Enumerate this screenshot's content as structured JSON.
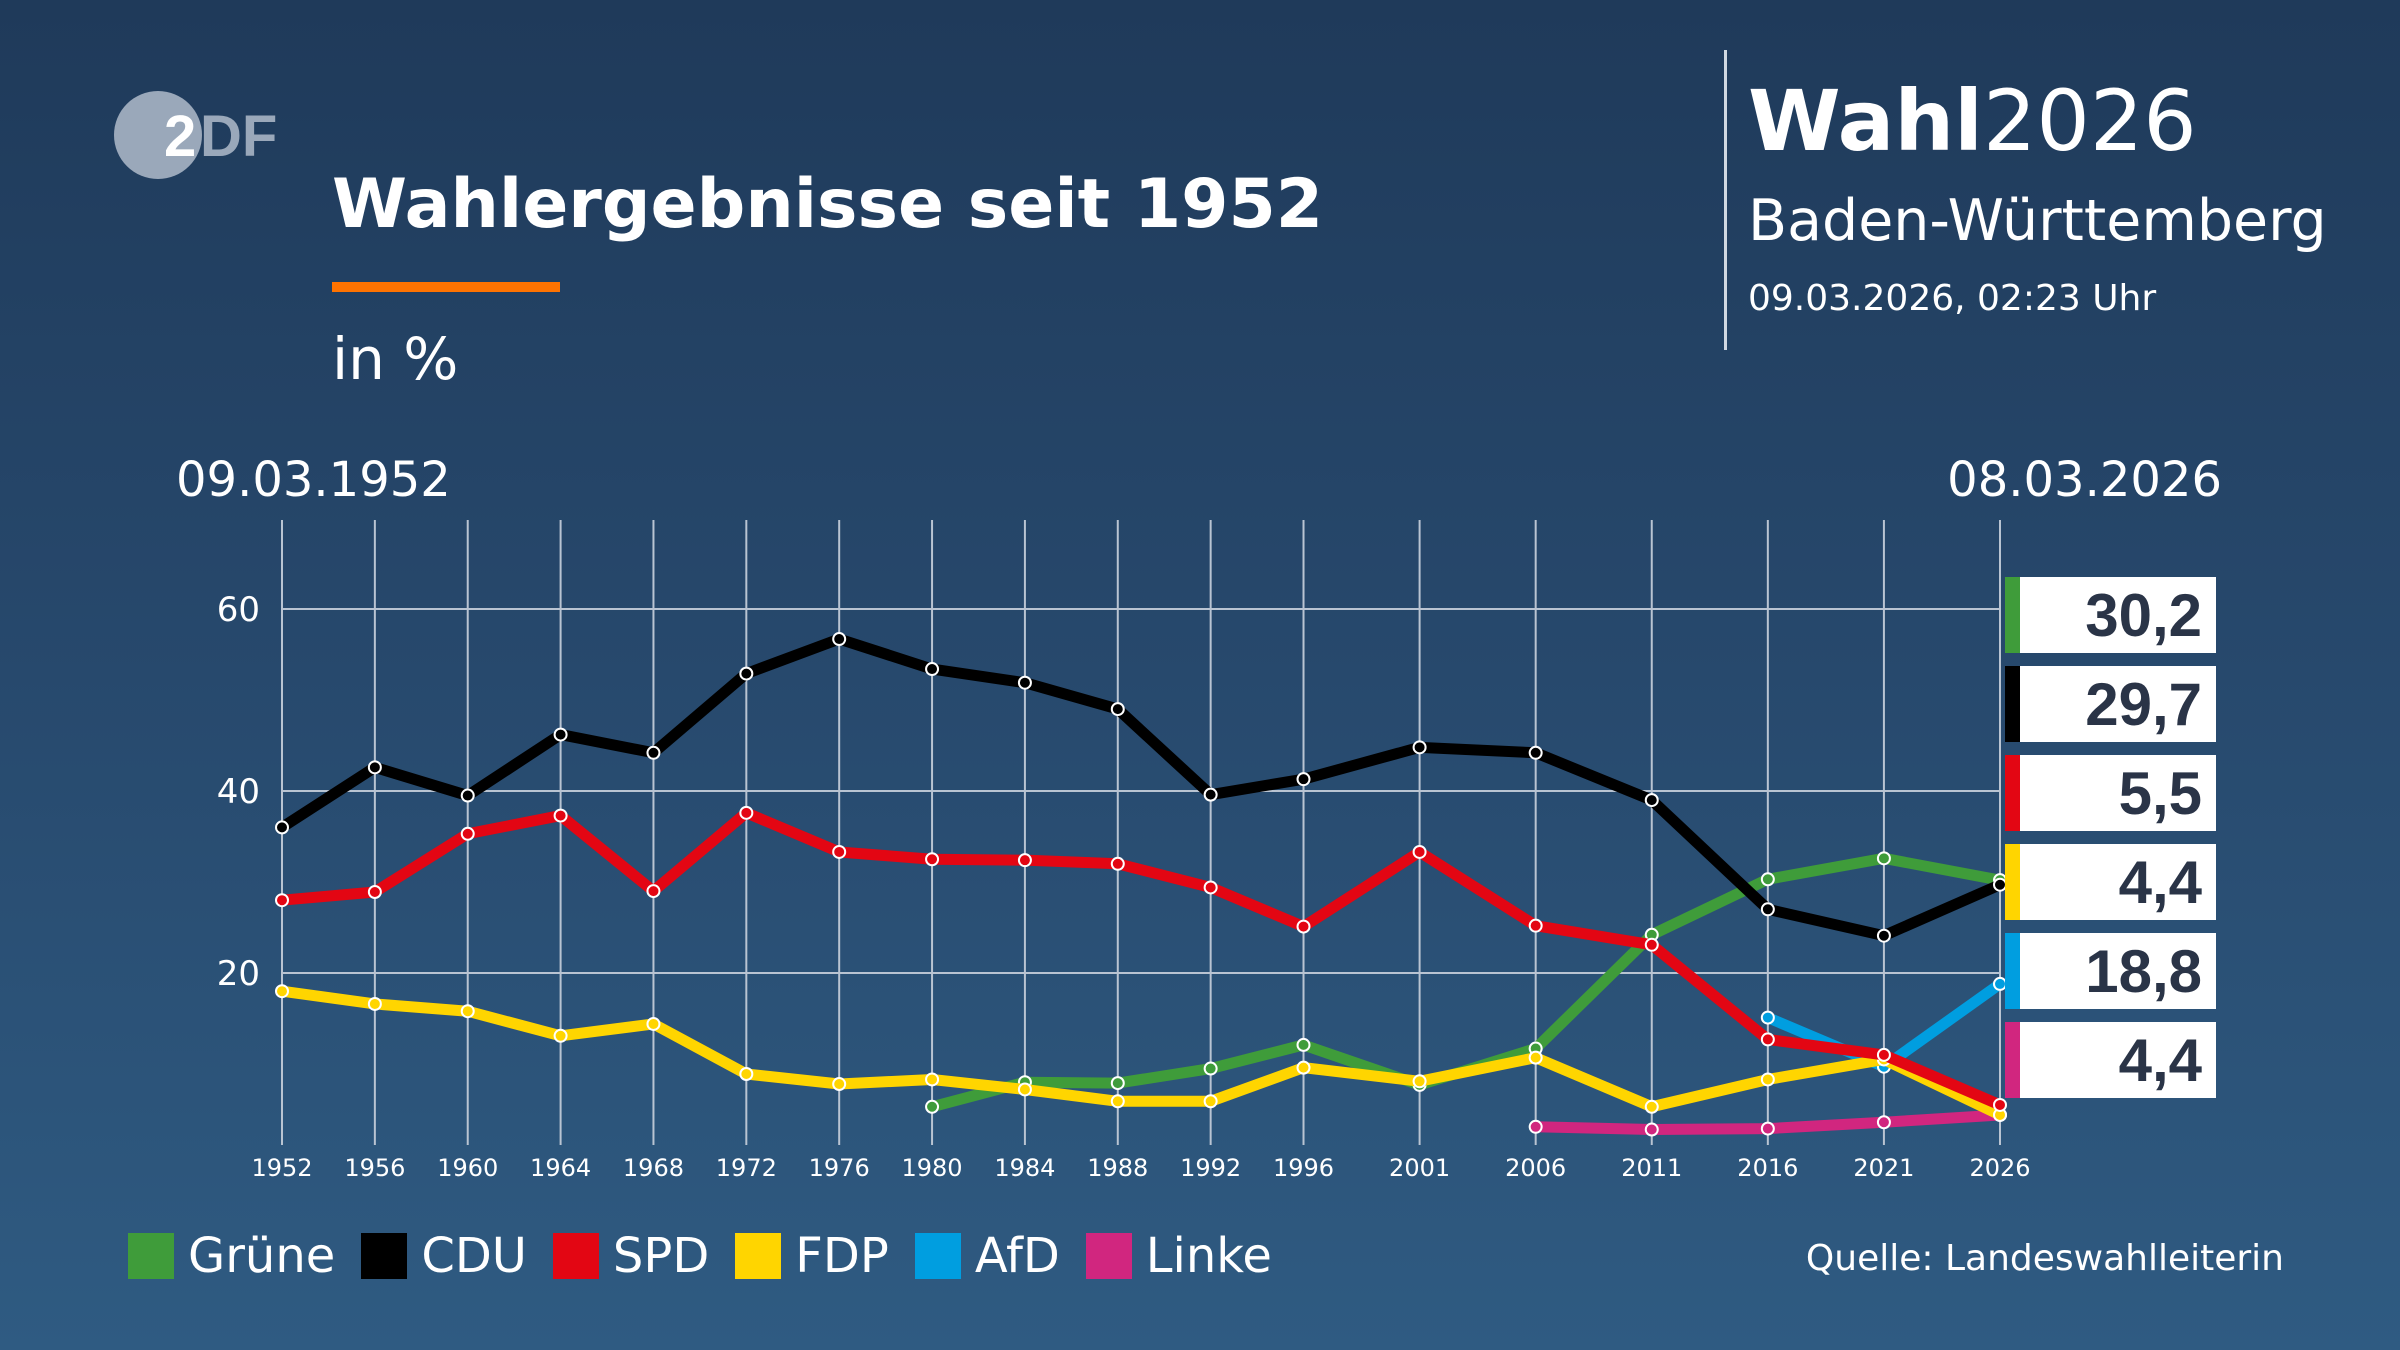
{
  "logo": {
    "text": "ZDF"
  },
  "title": "Wahlergebnisse seit 1952",
  "unit": "in %",
  "brand": {
    "bold": "Wahl",
    "year": "2026"
  },
  "region": "Baden-Württemberg",
  "timestamp": "09.03.2026, 02:23 Uhr",
  "date_start": "09.03.1952",
  "date_end": "08.03.2026",
  "source": "Quelle: Landeswahlleiterin",
  "chart_data": {
    "type": "line",
    "title": "Wahlergebnisse seit 1952",
    "ylabel": "in %",
    "x": [
      1952,
      1956,
      1960,
      1964,
      1968,
      1972,
      1976,
      1980,
      1984,
      1988,
      1992,
      1996,
      2001,
      2006,
      2011,
      2016,
      2021,
      2026
    ],
    "x_tick_labels": [
      "1952",
      "1956",
      "1960",
      "1964",
      "1968",
      "1972",
      "1976",
      "1980",
      "1984",
      "1988",
      "1992",
      "1996",
      "2001",
      "2006",
      "2011",
      "2016",
      "2021",
      "2026"
    ],
    "ylim": [
      0,
      68
    ],
    "y_ticks": [
      20,
      40,
      60
    ],
    "y_tick_labels": [
      "20",
      "40",
      "60"
    ],
    "grid": true,
    "legend_position": "bottom-left",
    "series": [
      {
        "name": "Grüne",
        "color": "#3f9c3a",
        "values": [
          null,
          null,
          null,
          null,
          null,
          null,
          null,
          5.3,
          8.0,
          7.9,
          9.5,
          12.1,
          7.7,
          11.7,
          24.2,
          30.3,
          32.6,
          30.2
        ],
        "label": "30,2"
      },
      {
        "name": "CDU",
        "color": "#000000",
        "values": [
          36.0,
          42.6,
          39.5,
          46.2,
          44.2,
          52.9,
          56.7,
          53.4,
          51.9,
          49.0,
          39.6,
          41.3,
          44.8,
          44.2,
          39.0,
          27.0,
          24.1,
          29.7
        ],
        "label": "29,7"
      },
      {
        "name": "SPD",
        "color": "#e30613",
        "values": [
          28.0,
          28.9,
          35.3,
          37.3,
          29.0,
          37.6,
          33.3,
          32.5,
          32.4,
          32.0,
          29.4,
          25.1,
          33.3,
          25.2,
          23.1,
          12.7,
          11.0,
          5.5
        ],
        "label": "5,5"
      },
      {
        "name": "FDP",
        "color": "#ffd500",
        "values": [
          18.0,
          16.6,
          15.8,
          13.1,
          14.4,
          8.9,
          7.8,
          8.3,
          7.2,
          5.9,
          5.9,
          9.6,
          8.1,
          10.7,
          5.3,
          8.3,
          10.5,
          4.4
        ],
        "label": "4,4"
      },
      {
        "name": "AfD",
        "color": "#009ee0",
        "values": [
          null,
          null,
          null,
          null,
          null,
          null,
          null,
          null,
          null,
          null,
          null,
          null,
          null,
          null,
          null,
          15.1,
          9.7,
          18.8
        ],
        "label": "18,8"
      },
      {
        "name": "Linke",
        "color": "#d1267f",
        "values": [
          null,
          null,
          null,
          null,
          null,
          null,
          null,
          null,
          null,
          null,
          null,
          null,
          null,
          3.1,
          2.8,
          2.9,
          3.6,
          4.4
        ],
        "label": "4,4"
      }
    ]
  }
}
